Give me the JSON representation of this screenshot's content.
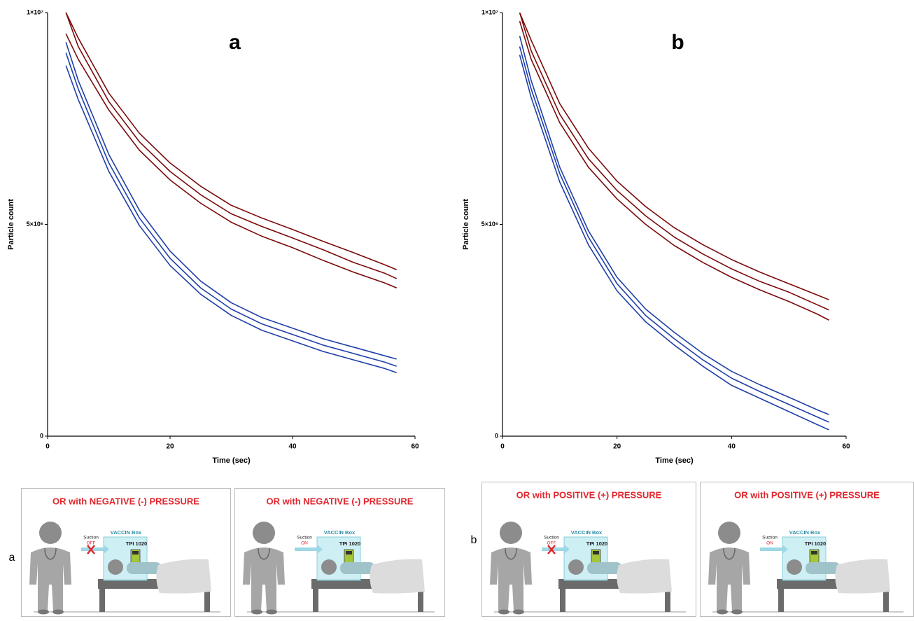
{
  "chart_data": [
    {
      "type": "line",
      "title": "a",
      "xlabel": "Time (sec)",
      "ylabel": "Particle count",
      "x": [
        3,
        5,
        10,
        15,
        20,
        25,
        30,
        35,
        40,
        45,
        50,
        55,
        57
      ],
      "xlim": [
        0,
        60
      ],
      "xticks": [
        0,
        20,
        40,
        60
      ],
      "ylim": [
        0,
        10000000.0
      ],
      "yticks": [
        0,
        {
          "value": 5000000.0,
          "label": "5×10⁶"
        },
        {
          "value": 10000000.0,
          "label": "1×10⁷"
        }
      ],
      "series": [
        {
          "color": "#7a0a0a",
          "values": [
            10000000.0,
            9400000.0,
            8100000.0,
            7150000.0,
            6450000.0,
            5900000.0,
            5450000.0,
            5150000.0,
            4880000.0,
            4600000.0,
            4330000.0,
            4050000.0,
            3930000.0
          ]
        },
        {
          "color": "#7a0a0a",
          "values": [
            10000000.0,
            9200000.0,
            7900000.0,
            6950000.0,
            6250000.0,
            5700000.0,
            5250000.0,
            4950000.0,
            4680000.0,
            4400000.0,
            4100000.0,
            3850000.0,
            3720000.0
          ]
        },
        {
          "color": "#7a0a0a",
          "values": [
            9500000.0,
            8900000.0,
            7700000.0,
            6750000.0,
            6050000.0,
            5500000.0,
            5050000.0,
            4720000.0,
            4450000.0,
            4150000.0,
            3870000.0,
            3620000.0,
            3500000.0
          ]
        },
        {
          "color": "#1f3fa8",
          "values": [
            9300000.0,
            8400000.0,
            6650000.0,
            5330000.0,
            4370000.0,
            3660000.0,
            3150000.0,
            2800000.0,
            2550000.0,
            2300000.0,
            2100000.0,
            1900000.0,
            1820000.0
          ]
        },
        {
          "color": "#1f3fa8",
          "values": [
            9050000.0,
            8200000.0,
            6450000.0,
            5150000.0,
            4200000.0,
            3500000.0,
            3000000.0,
            2650000.0,
            2400000.0,
            2150000.0,
            1950000.0,
            1750000.0,
            1650000.0
          ]
        },
        {
          "color": "#1f3fa8",
          "values": [
            8750000.0,
            7950000.0,
            6250000.0,
            4970000.0,
            4030000.0,
            3350000.0,
            2850000.0,
            2500000.0,
            2250000.0,
            2000000.0,
            1800000.0,
            1600000.0,
            1500000.0
          ]
        }
      ]
    },
    {
      "type": "line",
      "title": "b",
      "xlabel": "Time (sec)",
      "ylabel": "Particle count",
      "x": [
        3,
        5,
        10,
        15,
        20,
        25,
        30,
        35,
        40,
        45,
        50,
        55,
        57
      ],
      "xlim": [
        0,
        60
      ],
      "xticks": [
        0,
        20,
        40,
        60
      ],
      "ylim": [
        0,
        10000000.0
      ],
      "yticks": [
        0,
        {
          "value": 5000000.0,
          "label": "5×10⁶"
        },
        {
          "value": 10000000.0,
          "label": "1×10⁷"
        }
      ],
      "series": [
        {
          "color": "#7a0a0a",
          "values": [
            10000000.0,
            9350000.0,
            7850000.0,
            6800000.0,
            6020000.0,
            5420000.0,
            4920000.0,
            4520000.0,
            4170000.0,
            3870000.0,
            3600000.0,
            3330000.0,
            3220000.0
          ]
        },
        {
          "color": "#7a0a0a",
          "values": [
            10000000.0,
            9100000.0,
            7600000.0,
            6550000.0,
            5800000.0,
            5200000.0,
            4700000.0,
            4300000.0,
            3950000.0,
            3650000.0,
            3400000.0,
            3100000.0,
            2980000.0
          ]
        },
        {
          "color": "#7a0a0a",
          "values": [
            9800000.0,
            8900000.0,
            7400000.0,
            6350000.0,
            5600000.0,
            5000000.0,
            4500000.0,
            4100000.0,
            3750000.0,
            3450000.0,
            3180000.0,
            2880000.0,
            2740000.0
          ]
        },
        {
          "color": "#1f3fa8",
          "values": [
            9450000.0,
            8400000.0,
            6350000.0,
            4850000.0,
            3750000.0,
            3000000.0,
            2450000.0,
            1950000.0,
            1530000.0,
            1210000.0,
            920000.0,
            620000.0,
            510000.0
          ]
        },
        {
          "color": "#1f3fa8",
          "values": [
            9200000.0,
            8200000.0,
            6200000.0,
            4700000.0,
            3600000.0,
            2850000.0,
            2300000.0,
            1800000.0,
            1370000.0,
            1050000.0,
            750000.0,
            450000.0,
            330000.0
          ]
        },
        {
          "color": "#1f3fa8",
          "values": [
            9000000.0,
            8000000.0,
            6000000.0,
            4520000.0,
            3430000.0,
            2700000.0,
            2150000.0,
            1650000.0,
            1200000.0,
            890000.0,
            580000.0,
            270000.0,
            150000.0
          ]
        }
      ]
    }
  ],
  "panels": [
    {
      "label": "a",
      "scenes": [
        {
          "title": "OR with NEGATIVE (-) PRESSURE",
          "suction": "Suction",
          "state": "OFF",
          "suction_blocked": true,
          "box": "VACCIN Box",
          "device": "TPI 1020"
        },
        {
          "title": "OR with NEGATIVE (-) PRESSURE",
          "suction": "Suction",
          "state": "ON",
          "suction_blocked": false,
          "box": "VACCIN Box",
          "device": "TPI 1020"
        }
      ]
    },
    {
      "label": "b",
      "scenes": [
        {
          "title": "OR with POSITIVE (+) PRESSURE",
          "suction": "Suction",
          "state": "OFF",
          "suction_blocked": true,
          "box": "VACCIN Box",
          "device": "TPI 1020"
        },
        {
          "title": "OR with POSITIVE (+) PRESSURE",
          "suction": "Suction",
          "state": "ON",
          "suction_blocked": false,
          "box": "VACCIN Box",
          "device": "TPI 1020"
        }
      ]
    }
  ]
}
